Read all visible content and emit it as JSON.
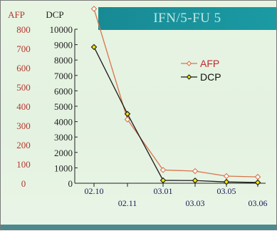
{
  "chart_data": {
    "type": "line",
    "title": "IFN/5-FU 5",
    "x": [
      "02.10",
      "02.11",
      "03.01",
      "03.03",
      "03.05",
      "03.06"
    ],
    "x_tick_labels_upper": [
      "02.10",
      "03.01",
      "03.05"
    ],
    "x_tick_labels_lower": [
      "02.11",
      "03.03",
      "03.06"
    ],
    "left_axis": {
      "label": "AFP",
      "ylim": [
        0,
        800
      ],
      "ticks": [
        "0",
        "100",
        "200",
        "300",
        "400",
        "500",
        "600",
        "700",
        "800"
      ]
    },
    "right_axis": {
      "label": "DCP",
      "ylim": [
        0,
        10000
      ],
      "ticks": [
        "0",
        "1000",
        "2000",
        "3000",
        "4000",
        "5000",
        "6000",
        "7000",
        "8000",
        "9000",
        "10000"
      ]
    },
    "series": [
      {
        "name": "AFP",
        "axis": "left",
        "color": "#d9734a",
        "marker": "diamond-open",
        "values": [
          906,
          331,
          69,
          63,
          37,
          33
        ]
      },
      {
        "name": "DCP",
        "axis": "right",
        "color": "#1a1a1a",
        "marker": "diamond-yellow",
        "values": [
          8844,
          4500,
          187,
          175,
          84,
          50
        ]
      }
    ],
    "legend": {
      "position": "right",
      "entries": [
        "AFP",
        "DCP"
      ]
    },
    "grid": false
  }
}
